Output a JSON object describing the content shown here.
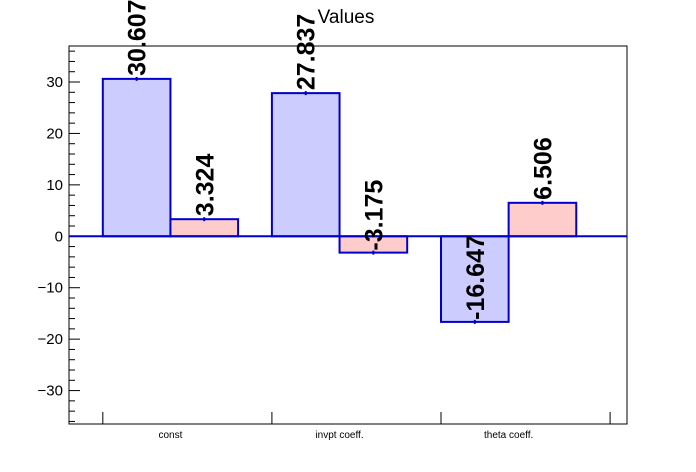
{
  "chart_data": {
    "type": "bar",
    "title": "Values",
    "categories": [
      "const",
      "invpt coeff.",
      "theta coeff."
    ],
    "series": [
      {
        "values": [
          30.607,
          27.837,
          -16.647
        ],
        "fill": "#ccccff",
        "stroke": "#0000cc"
      },
      {
        "values": [
          3.324,
          -3.175,
          6.506
        ],
        "fill": "#ffcccc",
        "stroke": "#0000cc"
      }
    ],
    "data_labels": [
      [
        "30.607",
        "27.837",
        "-16.647"
      ],
      [
        "3.324",
        "-3.175",
        "6.506"
      ]
    ],
    "ylim": [
      -36.5,
      37
    ],
    "yticks": [
      -30,
      -20,
      -10,
      0,
      10,
      20,
      30
    ],
    "ytick_labels": [
      "−30",
      "−20",
      "−10",
      "0",
      "10",
      "20",
      "30"
    ],
    "grid": false,
    "xlabel": "",
    "ylabel": ""
  }
}
